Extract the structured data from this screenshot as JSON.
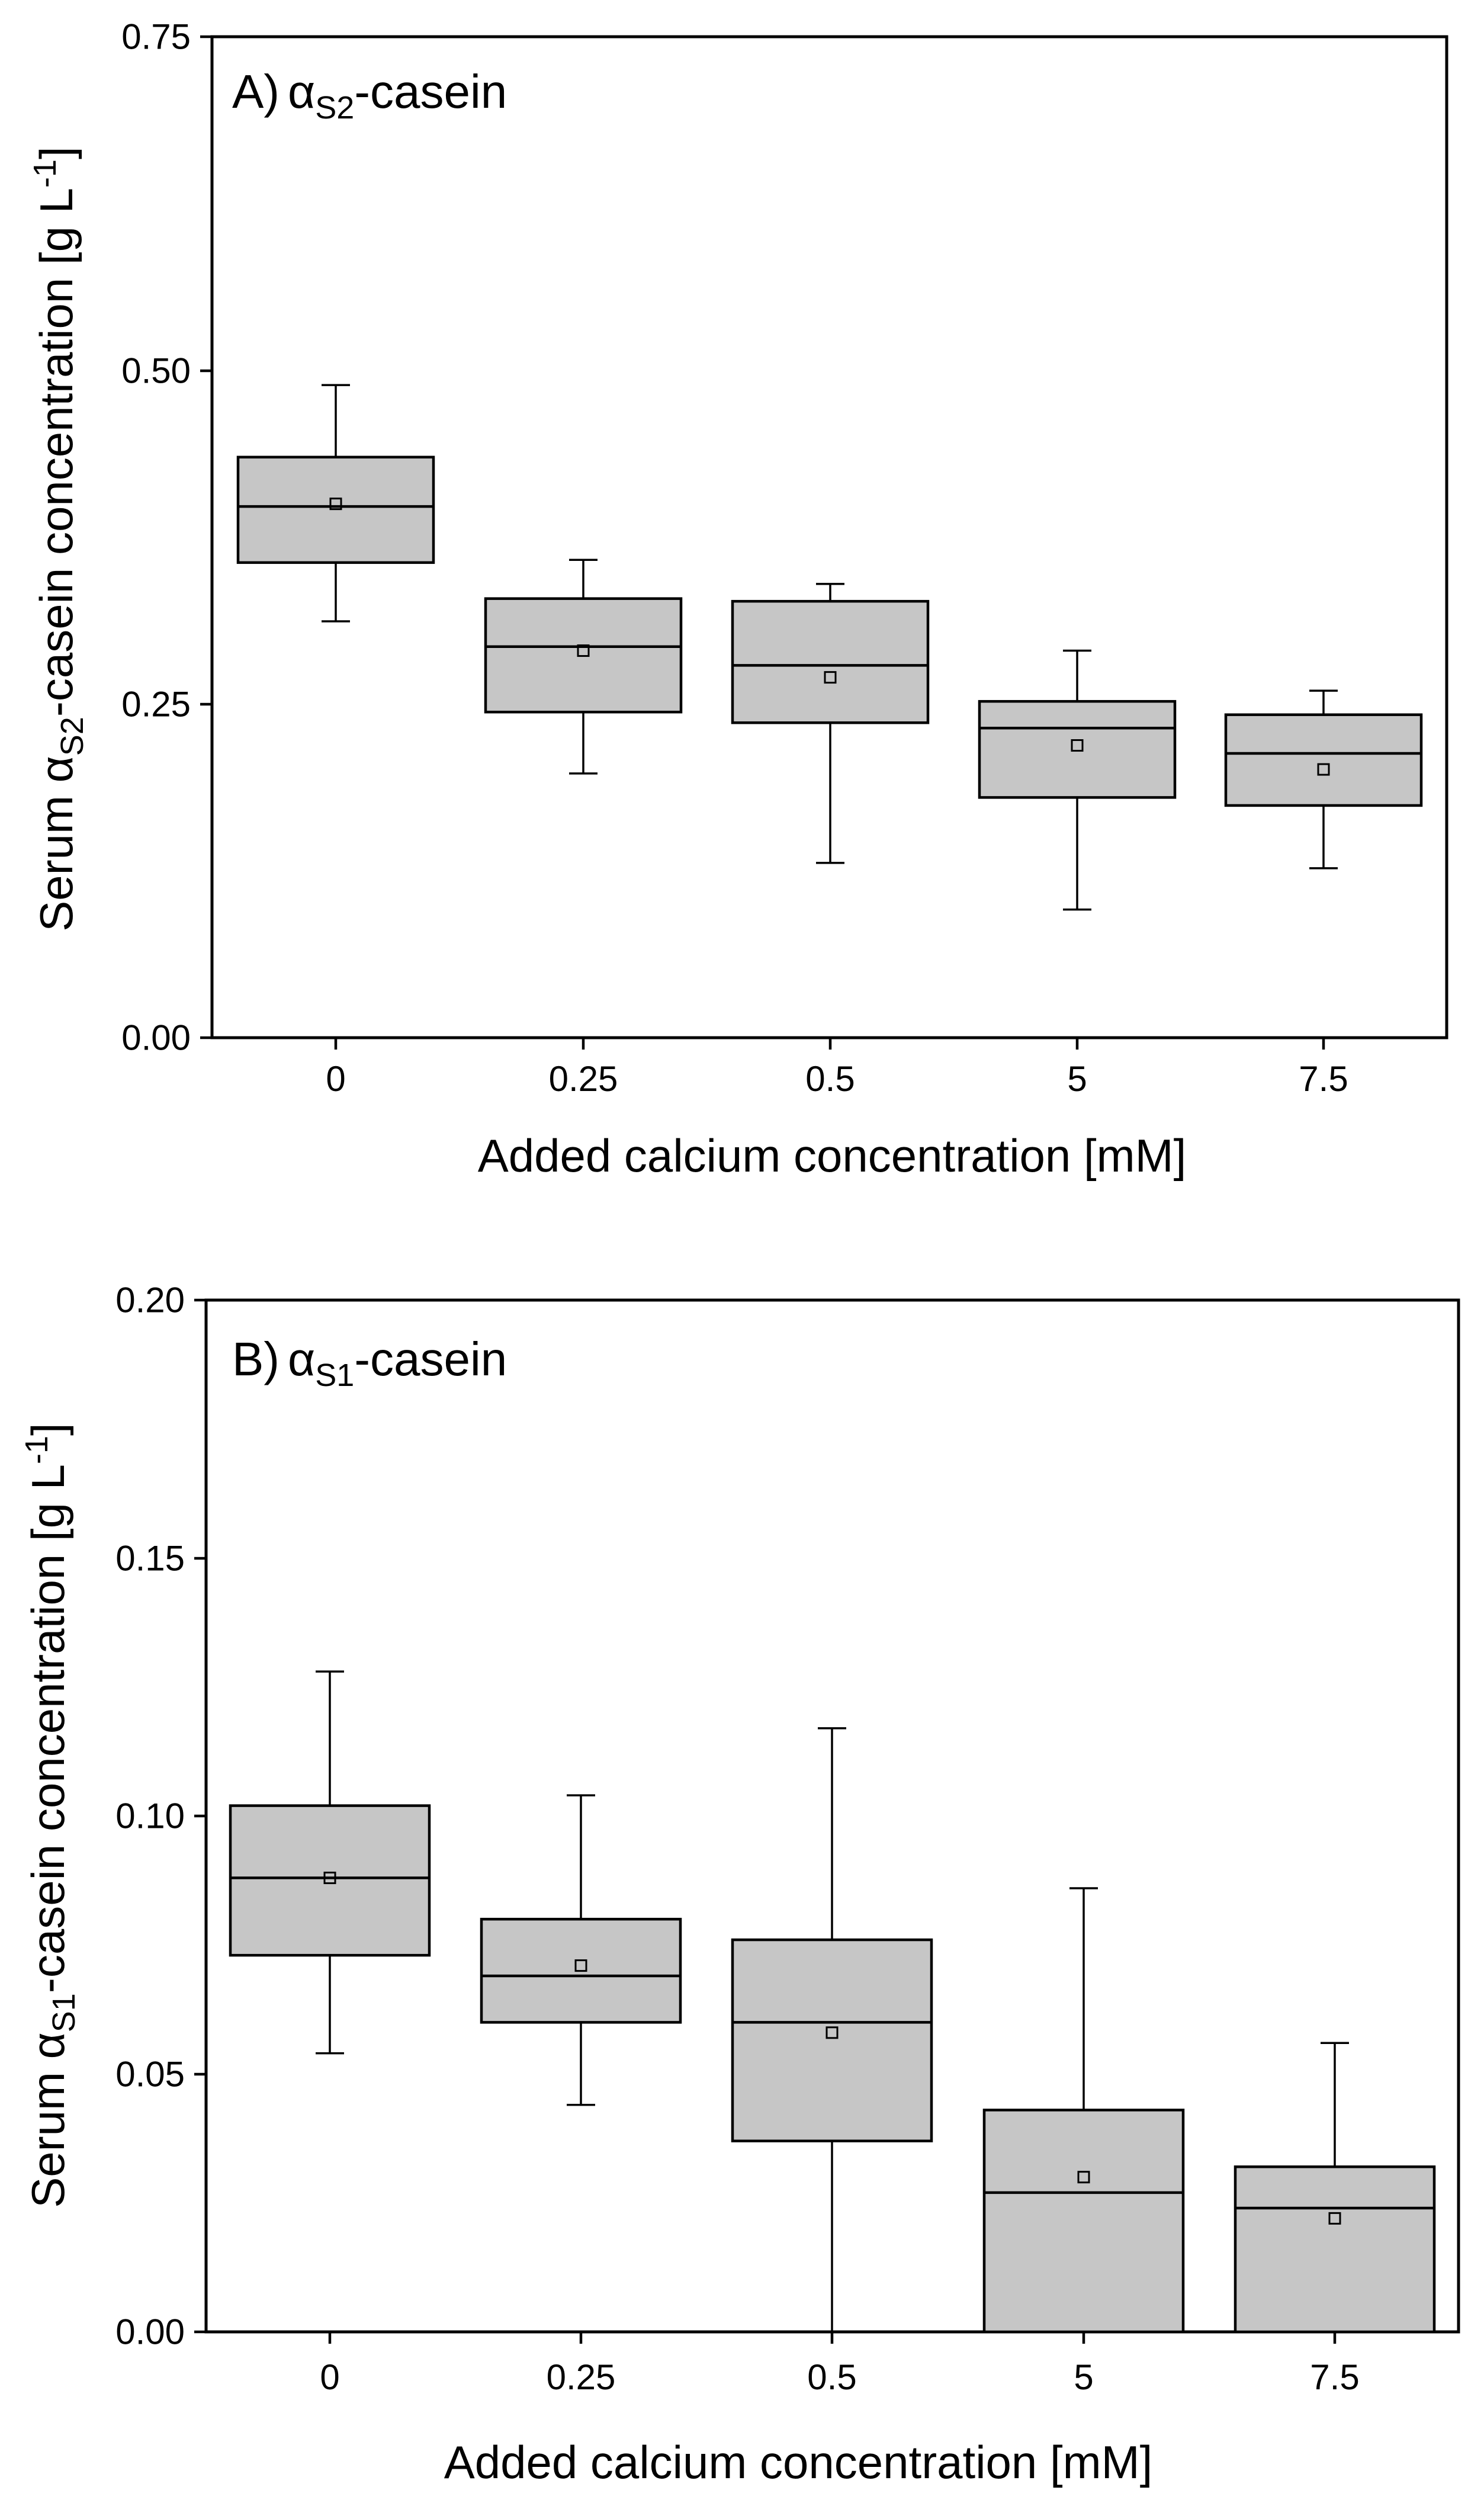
{
  "chart_data": [
    {
      "type": "box",
      "panel_label": "A)",
      "subscript": "S2",
      "panel_suffix": "-casein",
      "greek": "α",
      "categories": [
        "0",
        "0.25",
        "0.5",
        "5",
        "7.5"
      ],
      "boxes": [
        {
          "whisker_low": 0.312,
          "q1": 0.356,
          "median": 0.398,
          "q3": 0.435,
          "whisker_high": 0.489,
          "mean": 0.4
        },
        {
          "whisker_low": 0.198,
          "q1": 0.244,
          "median": 0.293,
          "q3": 0.329,
          "whisker_high": 0.358,
          "mean": 0.29
        },
        {
          "whisker_low": 0.131,
          "q1": 0.236,
          "median": 0.279,
          "q3": 0.327,
          "whisker_high": 0.34,
          "mean": 0.27
        },
        {
          "whisker_low": 0.096,
          "q1": 0.18,
          "median": 0.232,
          "q3": 0.252,
          "whisker_high": 0.29,
          "mean": 0.219
        },
        {
          "whisker_low": 0.127,
          "q1": 0.174,
          "median": 0.213,
          "q3": 0.242,
          "whisker_high": 0.26,
          "mean": 0.201
        }
      ],
      "ylim": [
        0,
        0.75
      ],
      "yticks": [
        "0.00",
        "0.25",
        "0.50",
        "0.75"
      ],
      "ylabel_prefix": "Serum ",
      "ylabel_suffix": "-casein concentration [g L",
      "ylabel_sup": "-1",
      "ylabel_end": "]",
      "xlabel": "Added calcium concentration [mM]"
    },
    {
      "type": "box",
      "panel_label": "B)",
      "subscript": "S1",
      "panel_suffix": "-casein",
      "greek": "α",
      "categories": [
        "0",
        "0.25",
        "0.5",
        "5",
        "7.5"
      ],
      "boxes": [
        {
          "whisker_low": 0.054,
          "q1": 0.073,
          "median": 0.088,
          "q3": 0.102,
          "whisker_high": 0.128,
          "mean": 0.088
        },
        {
          "whisker_low": 0.044,
          "q1": 0.06,
          "median": 0.069,
          "q3": 0.08,
          "whisker_high": 0.104,
          "mean": 0.071
        },
        {
          "whisker_low": 0.0,
          "q1": 0.037,
          "median": 0.06,
          "q3": 0.076,
          "whisker_high": 0.117,
          "mean": 0.058
        },
        {
          "whisker_low": 0.0,
          "q1": 0.0,
          "median": 0.027,
          "q3": 0.043,
          "whisker_high": 0.086,
          "mean": 0.03
        },
        {
          "whisker_low": 0.0,
          "q1": 0.0,
          "median": 0.024,
          "q3": 0.032,
          "whisker_high": 0.056,
          "mean": 0.022
        }
      ],
      "ylim": [
        0,
        0.2
      ],
      "yticks": [
        "0.00",
        "0.05",
        "0.10",
        "0.15",
        "0.20"
      ],
      "ylabel_prefix": "Serum ",
      "ylabel_suffix": "-casein concentration [g L",
      "ylabel_sup": "-1",
      "ylabel_end": "]",
      "xlabel": "Added calcium concentration [mM]"
    }
  ]
}
